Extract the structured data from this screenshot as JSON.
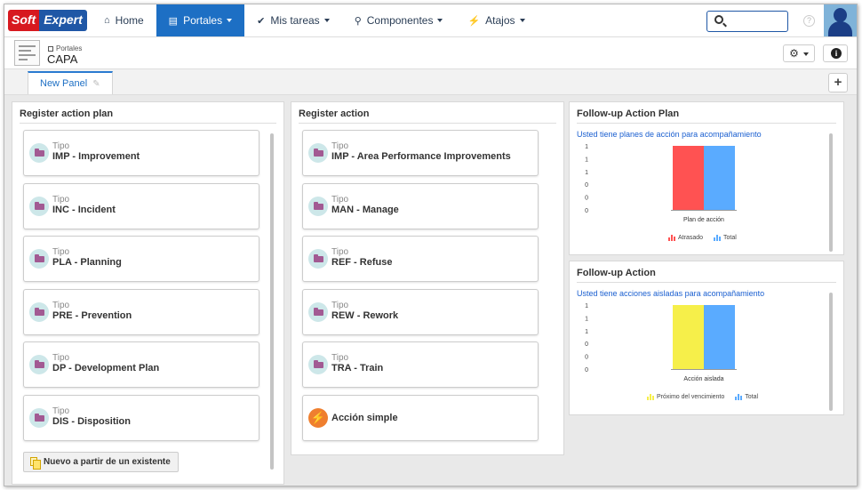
{
  "app": {
    "logo_part1": "Soft",
    "logo_part2": "Expert"
  },
  "nav": {
    "items": [
      {
        "label": "Home",
        "icon": "home-icon"
      },
      {
        "label": "Portales",
        "icon": "portal-icon",
        "active": true
      },
      {
        "label": "Mis tareas",
        "icon": "check-icon"
      },
      {
        "label": "Componentes",
        "icon": "trophy-icon"
      },
      {
        "label": "Atajos",
        "icon": "bolt-icon"
      }
    ],
    "search_placeholder": "",
    "help_label": "?"
  },
  "portal": {
    "breadcrumb": "Portales",
    "title": "CAPA"
  },
  "tabs": [
    {
      "label": "New Panel"
    }
  ],
  "panels": {
    "register_action_plan": {
      "title": "Register action plan",
      "cards": [
        {
          "sub": "Tipo",
          "main": "IMP - Improvement"
        },
        {
          "sub": "Tipo",
          "main": "INC - Incident"
        },
        {
          "sub": "Tipo",
          "main": "PLA - Planning"
        },
        {
          "sub": "Tipo",
          "main": "PRE - Prevention"
        },
        {
          "sub": "Tipo",
          "main": "DP - Development Plan"
        },
        {
          "sub": "Tipo",
          "main": "DIS - Disposition"
        }
      ],
      "new_button": "Nuevo a partir de un existente"
    },
    "register_action": {
      "title": "Register action",
      "cards": [
        {
          "sub": "Tipo",
          "main": "IMP - Area Performance Improvements"
        },
        {
          "sub": "Tipo",
          "main": "MAN - Manage"
        },
        {
          "sub": "Tipo",
          "main": "REF - Refuse"
        },
        {
          "sub": "Tipo",
          "main": "REW - Rework"
        },
        {
          "sub": "Tipo",
          "main": "TRA - Train"
        }
      ],
      "simple_action": "Acción simple"
    }
  },
  "chart_data": [
    {
      "type": "bar",
      "title": "Follow-up Action Plan",
      "subtitle": "Usted tiene planes de acción para acompañamiento",
      "categories": [
        "Plan de acción"
      ],
      "series": [
        {
          "name": "Atrasado",
          "values": [
            1
          ],
          "color": "#ff5252"
        },
        {
          "name": "Total",
          "values": [
            1
          ],
          "color": "#5aabff"
        }
      ],
      "y_tick_labels": [
        "1",
        "1",
        "1",
        "0",
        "0",
        "0"
      ],
      "ylim": [
        0,
        1
      ]
    },
    {
      "type": "bar",
      "title": "Follow-up Action",
      "subtitle": "Usted tiene acciones aisladas para acompañamiento",
      "categories": [
        "Acción aislada"
      ],
      "series": [
        {
          "name": "Próximo del vencimiento",
          "values": [
            1
          ],
          "color": "#f6ef4a"
        },
        {
          "name": "Total",
          "values": [
            1
          ],
          "color": "#5aabff"
        }
      ],
      "y_tick_labels": [
        "1",
        "1",
        "1",
        "0",
        "0",
        "0"
      ],
      "ylim": [
        0,
        1
      ]
    }
  ]
}
